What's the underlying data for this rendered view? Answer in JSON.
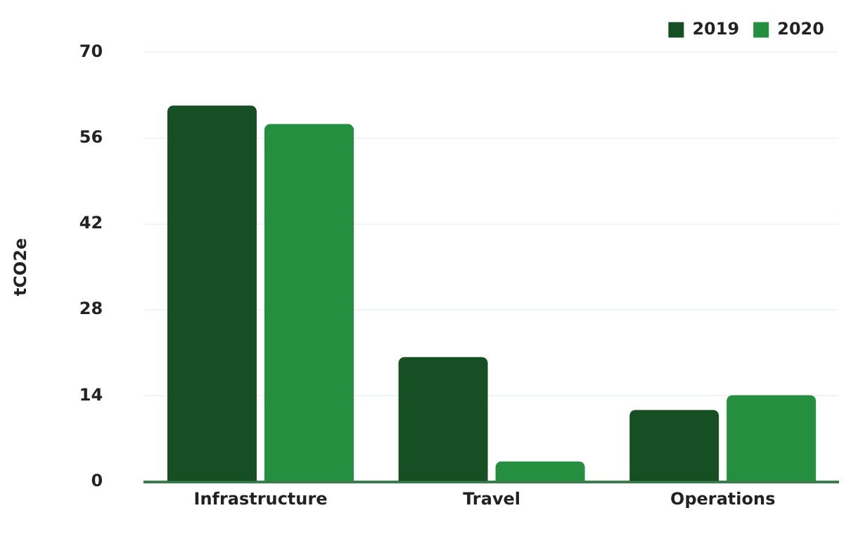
{
  "chart_data": {
    "type": "bar",
    "ylabel": "tCO2e",
    "categories": [
      "Infrastructure",
      "Travel",
      "Operations"
    ],
    "series": [
      {
        "name": "2019",
        "color": "#164f23",
        "values": [
          61.3,
          20.3,
          11.7
        ]
      },
      {
        "name": "2020",
        "color": "#248f3f",
        "values": [
          58.3,
          3.3,
          14.1
        ]
      }
    ],
    "ylim": [
      0,
      70
    ],
    "yticks": [
      0,
      14,
      28,
      42,
      56,
      70
    ],
    "grid": "y",
    "legend": "top right"
  }
}
